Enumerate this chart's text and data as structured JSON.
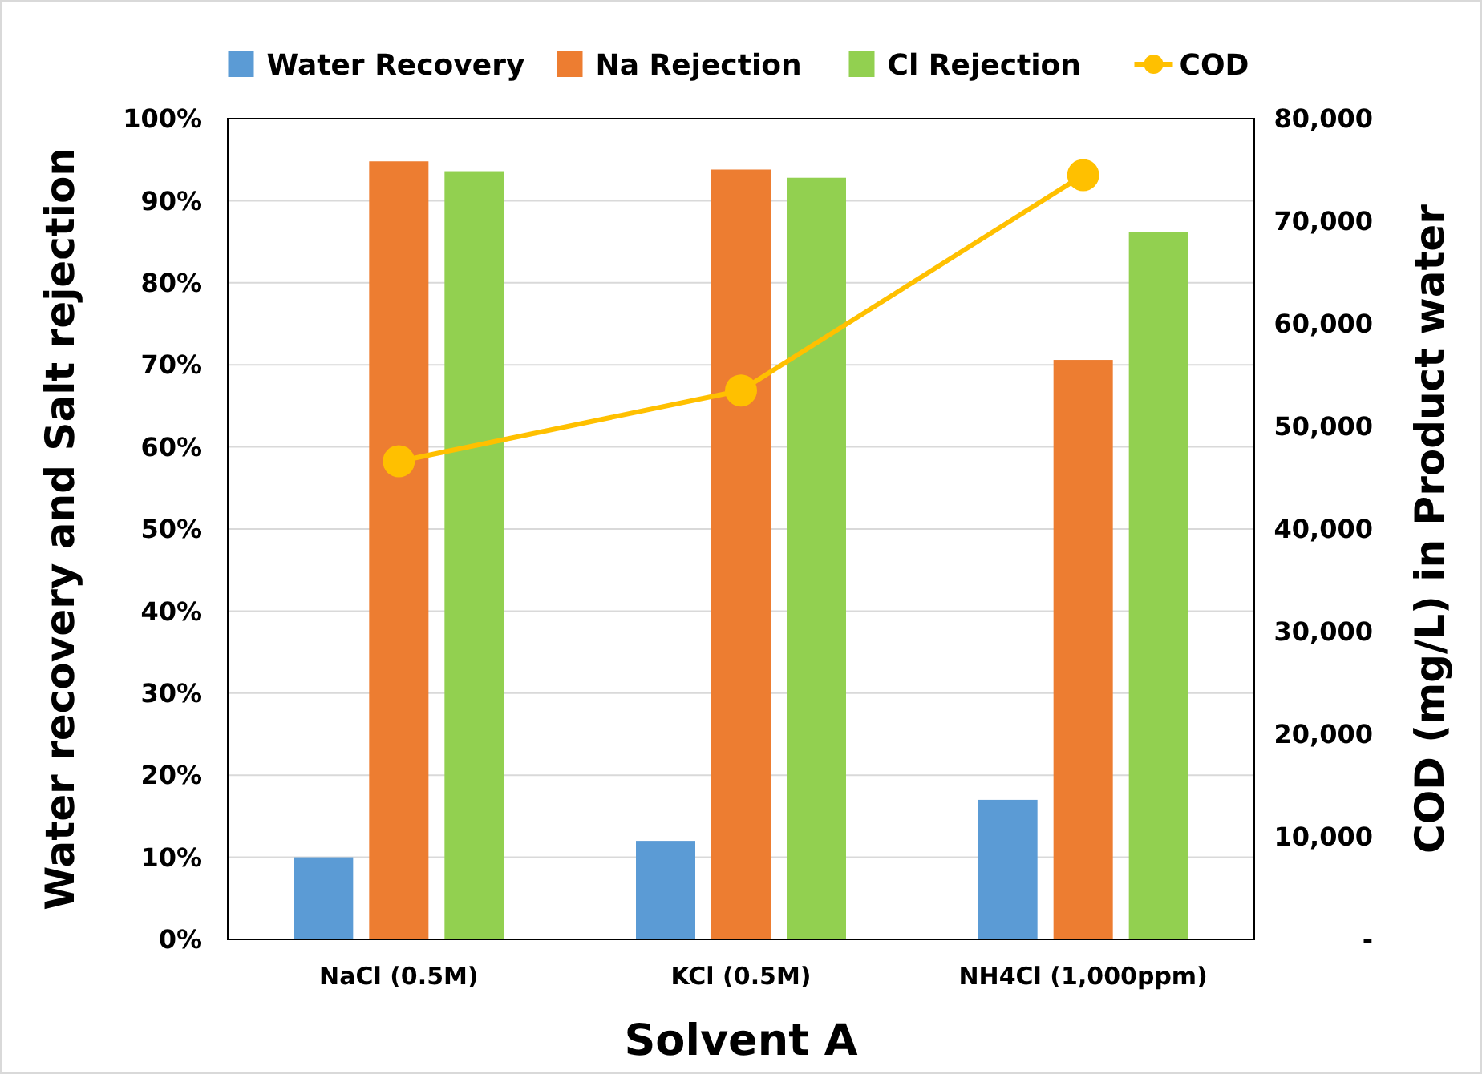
{
  "chart_data": {
    "type": "bar",
    "xlabel": "Solvent A",
    "ylabel": "Water recovery and Salt rejection",
    "y2label": "COD (mg/L) in Product water",
    "categories": [
      "NaCl (0.5M)",
      "KCl (0.5M)",
      "NH4Cl (1,000ppm)"
    ],
    "series": [
      {
        "name": "Water Recovery",
        "color": "#5b9bd5",
        "values": [
          10,
          12,
          17
        ]
      },
      {
        "name": "Na Rejection",
        "color": "#ed7d31",
        "values": [
          94.8,
          93.8,
          70.6
        ]
      },
      {
        "name": "Cl Rejection",
        "color": "#92d050",
        "values": [
          93.6,
          92.8,
          86.2
        ]
      },
      {
        "name": "COD",
        "type": "line",
        "axis": "y2",
        "color": "#ffc000",
        "marker": "circle",
        "values": [
          46600,
          53500,
          74500
        ]
      }
    ],
    "ylim": [
      0,
      100
    ],
    "yticks": [
      {
        "value": 0,
        "label": "0%"
      },
      {
        "value": 10,
        "label": "10%"
      },
      {
        "value": 20,
        "label": "20%"
      },
      {
        "value": 30,
        "label": "30%"
      },
      {
        "value": 40,
        "label": "40%"
      },
      {
        "value": 50,
        "label": "50%"
      },
      {
        "value": 60,
        "label": "60%"
      },
      {
        "value": 70,
        "label": "70%"
      },
      {
        "value": 80,
        "label": "80%"
      },
      {
        "value": 90,
        "label": "90%"
      },
      {
        "value": 100,
        "label": "100%"
      }
    ],
    "y2lim": [
      0,
      80000
    ],
    "y2ticks": [
      {
        "value": 0,
        "label": "-"
      },
      {
        "value": 10000,
        "label": "10,000"
      },
      {
        "value": 20000,
        "label": "20,000"
      },
      {
        "value": 30000,
        "label": "30,000"
      },
      {
        "value": 40000,
        "label": "40,000"
      },
      {
        "value": 50000,
        "label": "50,000"
      },
      {
        "value": 60000,
        "label": "60,000"
      },
      {
        "value": 70000,
        "label": "70,000"
      },
      {
        "value": 80000,
        "label": "80,000"
      }
    ],
    "grid": "y",
    "legend": "top"
  }
}
